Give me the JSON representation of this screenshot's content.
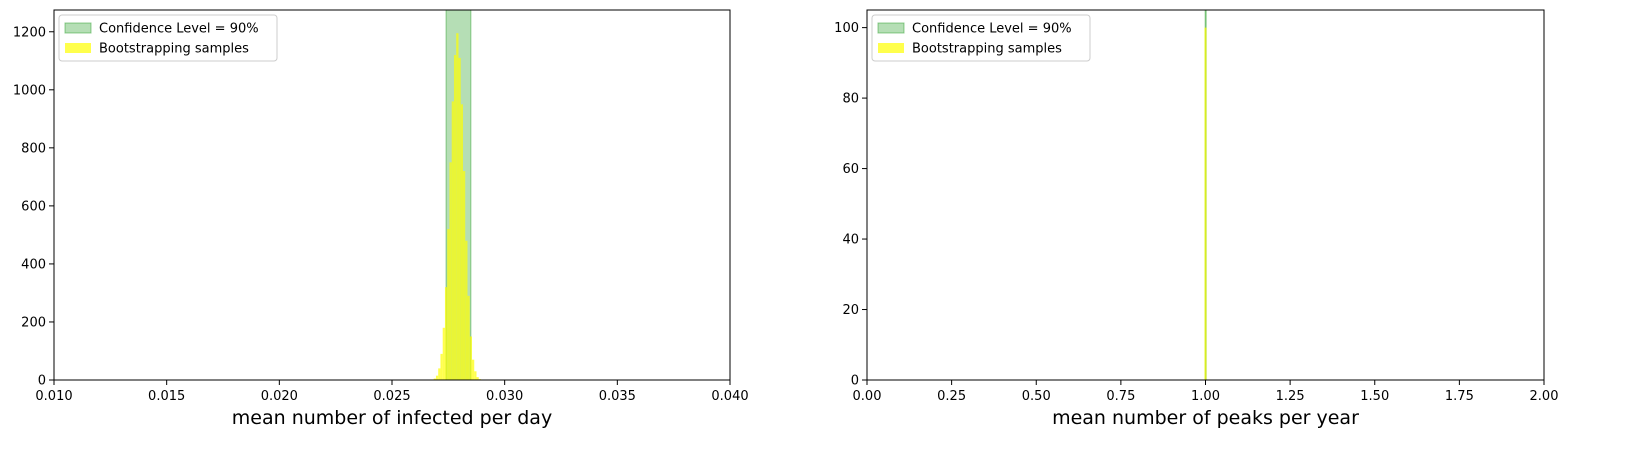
{
  "chart_data": [
    {
      "type": "histogram",
      "xlabel": "mean number of infected per day",
      "ylabel": "",
      "xlim": [
        0.01,
        0.04
      ],
      "ylim": [
        0,
        1275
      ],
      "x_ticks": [
        "0.010",
        "0.015",
        "0.020",
        "0.025",
        "0.030",
        "0.035",
        "0.040"
      ],
      "x_tick_values": [
        0.01,
        0.015,
        0.02,
        0.025,
        0.03,
        0.035,
        0.04
      ],
      "y_ticks": [
        "0",
        "200",
        "400",
        "600",
        "800",
        "1000",
        "1200"
      ],
      "y_tick_values": [
        0,
        200,
        400,
        600,
        800,
        1000,
        1200
      ],
      "legend_position": "upper-left",
      "series": [
        {
          "name": "Confidence Level = 90%",
          "kind": "band",
          "x_start": 0.0274,
          "x_end": 0.0285,
          "color": "#2ca02c",
          "opacity": 0.35
        },
        {
          "name": "Bootstrapping samples",
          "kind": "histogram",
          "color": "#ffff00",
          "opacity": 0.7,
          "bins": [
            [
              0.0269,
              5
            ],
            [
              0.027,
              15
            ],
            [
              0.0271,
              40
            ],
            [
              0.0272,
              90
            ],
            [
              0.0273,
              180
            ],
            [
              0.0274,
              320
            ],
            [
              0.0275,
              520
            ],
            [
              0.0276,
              750
            ],
            [
              0.0277,
              960
            ],
            [
              0.0278,
              1120
            ],
            [
              0.0279,
              1195
            ],
            [
              0.028,
              1110
            ],
            [
              0.0281,
              950
            ],
            [
              0.0282,
              720
            ],
            [
              0.0283,
              480
            ],
            [
              0.0284,
              290
            ],
            [
              0.0285,
              150
            ],
            [
              0.0286,
              70
            ],
            [
              0.0287,
              30
            ],
            [
              0.0288,
              10
            ],
            [
              0.0289,
              3
            ]
          ],
          "bin_width": 0.0001
        }
      ]
    },
    {
      "type": "histogram",
      "xlabel": "mean number of peaks per year",
      "ylabel": "",
      "xlim": [
        0.0,
        2.0
      ],
      "ylim": [
        0,
        105
      ],
      "x_ticks": [
        "0.00",
        "0.25",
        "0.50",
        "0.75",
        "1.00",
        "1.25",
        "1.50",
        "1.75",
        "2.00"
      ],
      "x_tick_values": [
        0.0,
        0.25,
        0.5,
        0.75,
        1.0,
        1.25,
        1.5,
        1.75,
        2.0
      ],
      "y_ticks": [
        "0",
        "20",
        "40",
        "60",
        "80",
        "100"
      ],
      "y_tick_values": [
        0,
        20,
        40,
        60,
        80,
        100
      ],
      "legend_position": "upper-left",
      "series": [
        {
          "name": "Confidence Level = 90%",
          "kind": "band",
          "x_start": 0.999,
          "x_end": 1.001,
          "color": "#2ca02c",
          "opacity": 0.35
        },
        {
          "name": "Bootstrapping samples",
          "kind": "histogram",
          "color": "#ffff00",
          "opacity": 0.7,
          "bins": [
            [
              1.0,
              100
            ]
          ],
          "bin_width": 0.006
        }
      ]
    }
  ]
}
